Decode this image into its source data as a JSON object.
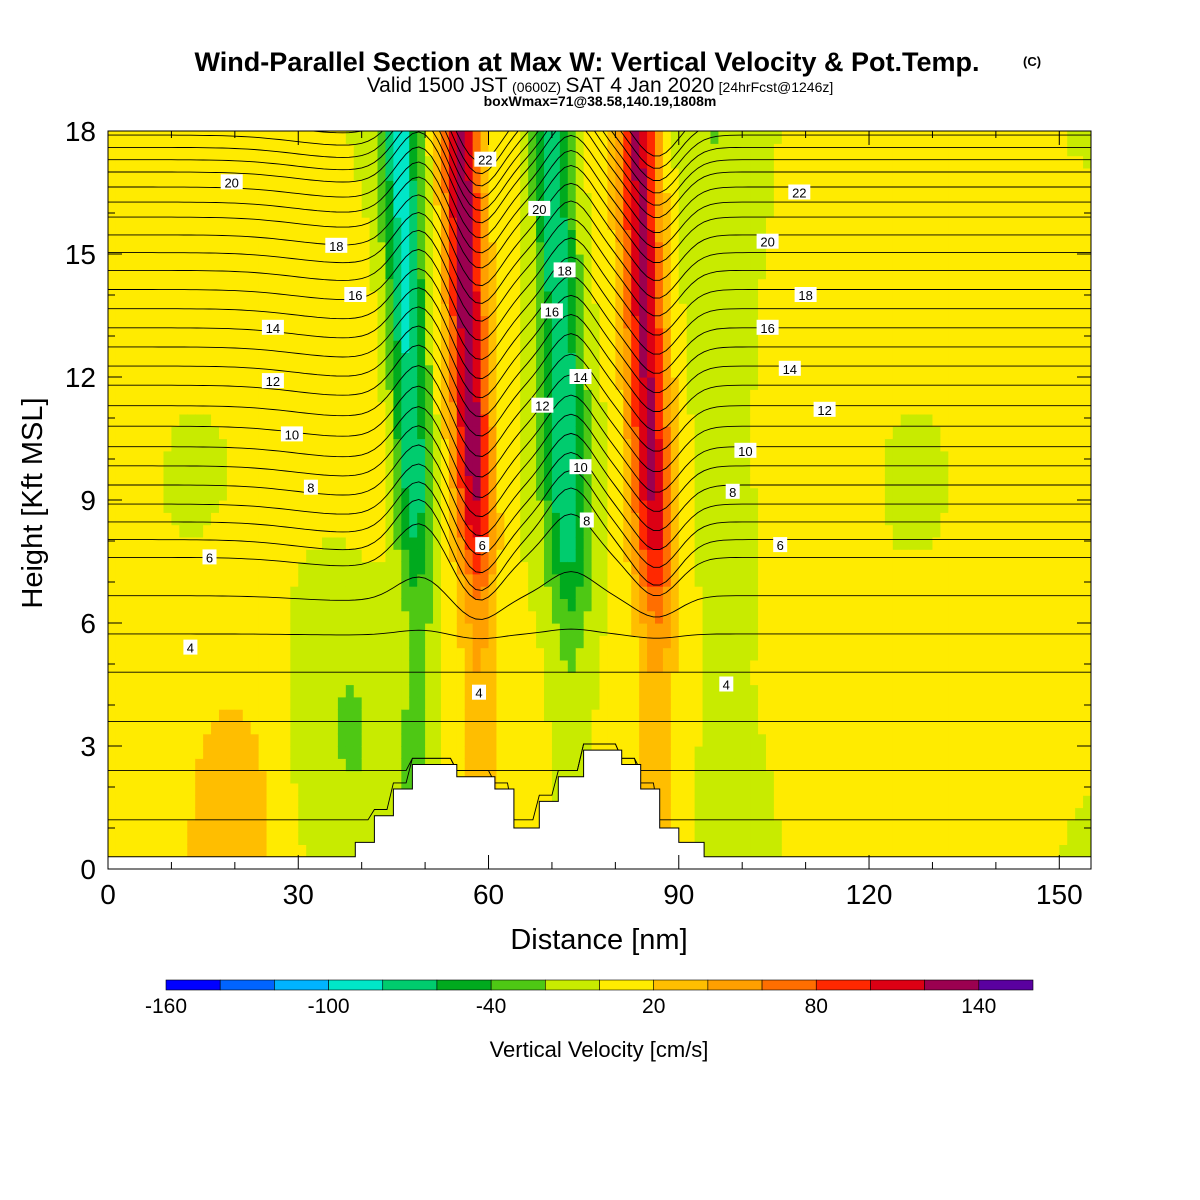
{
  "title": "Wind-Parallel Section at Max W: Vertical Velocity & Pot.Temp.",
  "copyright": "(C)",
  "valid_pre": "Valid 1500 JST",
  "valid_z": "(0600Z)",
  "valid_date": "SAT 4 Jan 2020",
  "valid_fcst": "[24hrFcst@1246z]",
  "box_max": "boxWmax=71@38.58,140.19,1808m",
  "chart_data": {
    "type": "heatmap",
    "xlabel": "Distance [nm]",
    "ylabel": "Height [Kft MSL]",
    "xlim": [
      0,
      155
    ],
    "ylim": [
      0,
      18
    ],
    "x_ticks": [
      0,
      30,
      60,
      90,
      120,
      150
    ],
    "y_ticks": [
      0,
      3,
      6,
      9,
      12,
      15,
      18
    ],
    "colorbar": {
      "label": "Vertical Velocity [cm/s]",
      "range": [
        -160,
        160
      ],
      "step": 20,
      "tick_labels": [
        "-160",
        "-100",
        "-40",
        "20",
        "80",
        "140"
      ],
      "tick_values": [
        -160,
        -100,
        -40,
        20,
        80,
        140
      ],
      "colors": [
        "#0000ff",
        "#0064ff",
        "#00b4ff",
        "#00e6c8",
        "#00cc6e",
        "#00aa1e",
        "#4ec814",
        "#c8eb00",
        "#ffeb00",
        "#ffbe00",
        "#ffa000",
        "#ff6e00",
        "#ff2800",
        "#dc0014",
        "#9b0050",
        "#5a00a0"
      ]
    },
    "velocity_bands": [
      {
        "x": 49,
        "w": 3,
        "amp": -90,
        "ztop": 7.5,
        "zbot": 6.5
      },
      {
        "x": 58.5,
        "w": 3,
        "amp": 130,
        "ztop": 7.5,
        "zbot": 5.5
      },
      {
        "x": 73,
        "w": 3.5,
        "amp": -80,
        "ztop": 6.8,
        "zbot": 6.0
      },
      {
        "x": 86.5,
        "w": 3.2,
        "amp": 120,
        "ztop": 6.8,
        "zbot": 5.0
      },
      {
        "x": 38,
        "w": 9,
        "amp": -25,
        "ztop": 4.0,
        "zbot": 4.0
      },
      {
        "x": 20,
        "w": 7,
        "amp": 25,
        "ztop": 1.0,
        "zbot": 4.0
      },
      {
        "x": 98,
        "w": 6,
        "amp": -20,
        "ztop": 6.0,
        "zbot": 4.0
      }
    ],
    "terrain_steps": [
      {
        "x0": 0,
        "x1": 39,
        "h": 0.3
      },
      {
        "x0": 39,
        "x1": 42,
        "h": 0.65
      },
      {
        "x0": 42,
        "x1": 45,
        "h": 1.3
      },
      {
        "x0": 45,
        "x1": 48,
        "h": 1.95
      },
      {
        "x0": 48,
        "x1": 55,
        "h": 2.55
      },
      {
        "x0": 55,
        "x1": 61,
        "h": 2.25
      },
      {
        "x0": 61,
        "x1": 64,
        "h": 1.95
      },
      {
        "x0": 64,
        "x1": 68,
        "h": 1.0
      },
      {
        "x0": 68,
        "x1": 71,
        "h": 1.65
      },
      {
        "x0": 71,
        "x1": 75,
        "h": 2.25
      },
      {
        "x0": 75,
        "x1": 81,
        "h": 2.9
      },
      {
        "x0": 81,
        "x1": 84,
        "h": 2.55
      },
      {
        "x0": 84,
        "x1": 87,
        "h": 1.95
      },
      {
        "x0": 87,
        "x1": 90,
        "h": 1.0
      },
      {
        "x0": 90,
        "x1": 94,
        "h": 0.65
      },
      {
        "x0": 94,
        "x1": 155,
        "h": 0.3
      }
    ],
    "theta_contours": {
      "values": [
        2,
        4,
        6,
        8,
        10,
        12,
        14,
        16,
        18,
        20,
        22
      ],
      "base_heights": [
        1.2,
        4.8,
        7.6,
        8.9,
        10.3,
        11.8,
        13.2,
        14.6,
        15.9,
        17.0,
        17.9
      ],
      "lines_per_level": 3
    },
    "contour_labels": [
      {
        "text": "20",
        "x": 19.5,
        "z": 16.75
      },
      {
        "text": "18",
        "x": 36,
        "z": 15.2
      },
      {
        "text": "16",
        "x": 39,
        "z": 14.0
      },
      {
        "text": "14",
        "x": 26,
        "z": 13.2
      },
      {
        "text": "12",
        "x": 26,
        "z": 11.9
      },
      {
        "text": "10",
        "x": 29,
        "z": 10.6
      },
      {
        "text": "8",
        "x": 32,
        "z": 9.3
      },
      {
        "text": "6",
        "x": 16,
        "z": 7.6
      },
      {
        "text": "4",
        "x": 13,
        "z": 5.4
      },
      {
        "text": "22",
        "x": 59.5,
        "z": 17.3
      },
      {
        "text": "20",
        "x": 68,
        "z": 16.1
      },
      {
        "text": "18",
        "x": 72,
        "z": 14.6
      },
      {
        "text": "16",
        "x": 70,
        "z": 13.6
      },
      {
        "text": "14",
        "x": 74.5,
        "z": 12.0
      },
      {
        "text": "12",
        "x": 68.5,
        "z": 11.3
      },
      {
        "text": "10",
        "x": 74.5,
        "z": 9.8
      },
      {
        "text": "8",
        "x": 75.5,
        "z": 8.5
      },
      {
        "text": "6",
        "x": 59,
        "z": 7.9
      },
      {
        "text": "4",
        "x": 58.5,
        "z": 4.3
      },
      {
        "text": "22",
        "x": 109,
        "z": 16.5
      },
      {
        "text": "20",
        "x": 104,
        "z": 15.3
      },
      {
        "text": "18",
        "x": 110,
        "z": 14.0
      },
      {
        "text": "16",
        "x": 104,
        "z": 13.2
      },
      {
        "text": "14",
        "x": 107.5,
        "z": 12.2
      },
      {
        "text": "12",
        "x": 113,
        "z": 11.2
      },
      {
        "text": "10",
        "x": 100.5,
        "z": 10.2
      },
      {
        "text": "8",
        "x": 98.5,
        "z": 9.2
      },
      {
        "text": "6",
        "x": 106,
        "z": 7.9
      },
      {
        "text": "4",
        "x": 97.5,
        "z": 4.5
      }
    ]
  }
}
